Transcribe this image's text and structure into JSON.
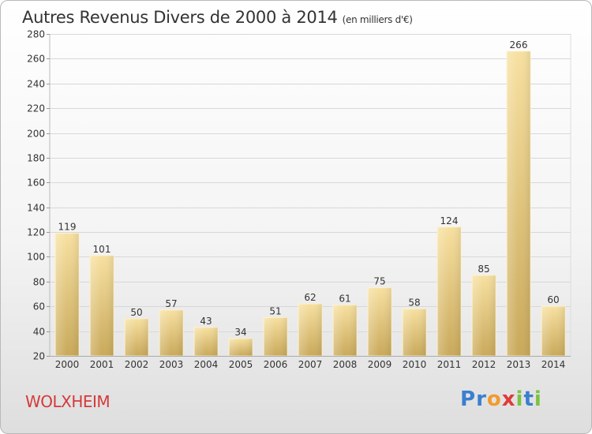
{
  "chart_data": {
    "type": "bar",
    "title": "Autres Revenus Divers de 2000 à 2014",
    "subtitle": "(en milliers d'€)",
    "categories": [
      "2000",
      "2001",
      "2002",
      "2003",
      "2004",
      "2005",
      "2006",
      "2007",
      "2008",
      "2009",
      "2010",
      "2011",
      "2012",
      "2013",
      "2014"
    ],
    "values": [
      119,
      101,
      50,
      57,
      43,
      34,
      51,
      62,
      61,
      75,
      58,
      124,
      85,
      266,
      60
    ],
    "ylim": [
      20,
      280
    ],
    "yticks": [
      20,
      40,
      60,
      80,
      100,
      120,
      140,
      160,
      180,
      200,
      220,
      240,
      260,
      280
    ],
    "grid": true,
    "bar_color": "#ecd08a"
  },
  "footer": {
    "town": "WOLXHEIM",
    "logo_letters": [
      {
        "char": "P",
        "color": "#3a7fd0"
      },
      {
        "char": "r",
        "color": "#3a7fd0"
      },
      {
        "char": "o",
        "color": "#f29a2e"
      },
      {
        "char": "x",
        "color": "#e03a3a"
      },
      {
        "char": "i",
        "color": "#7cc242"
      },
      {
        "char": "t",
        "color": "#3a7fd0"
      },
      {
        "char": "i",
        "color": "#7cc242"
      }
    ]
  }
}
